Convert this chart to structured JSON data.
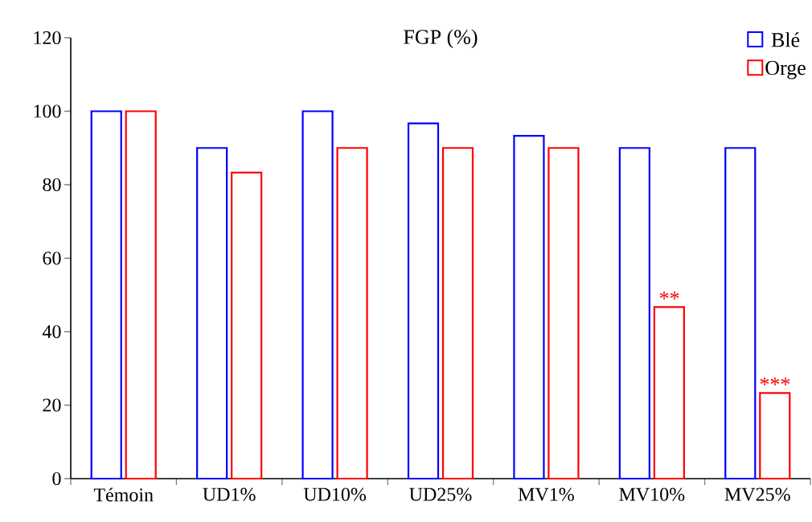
{
  "chart_data": {
    "type": "bar",
    "title": "FGP (%)",
    "categories": [
      "Témoin",
      "UD1%",
      "UD10%",
      "UD25%",
      "MV1%",
      "MV10%",
      "MV25%"
    ],
    "series": [
      {
        "name": "Blé",
        "color": "#0000ff",
        "values": [
          100,
          90,
          100,
          96.7,
          93.3,
          90,
          90
        ]
      },
      {
        "name": "Orge",
        "color": "#ff0000",
        "values": [
          100,
          83.3,
          90,
          90,
          90,
          46.7,
          23.3
        ]
      }
    ],
    "ylim": [
      0,
      120
    ],
    "yticks": [
      0,
      20,
      40,
      60,
      80,
      100,
      120
    ],
    "legend": "top right",
    "annotations": [
      {
        "text": "**",
        "x": "MV10%",
        "y": 46.7
      },
      {
        "text": "***",
        "x": "MV25%",
        "y": 23.3
      }
    ]
  }
}
